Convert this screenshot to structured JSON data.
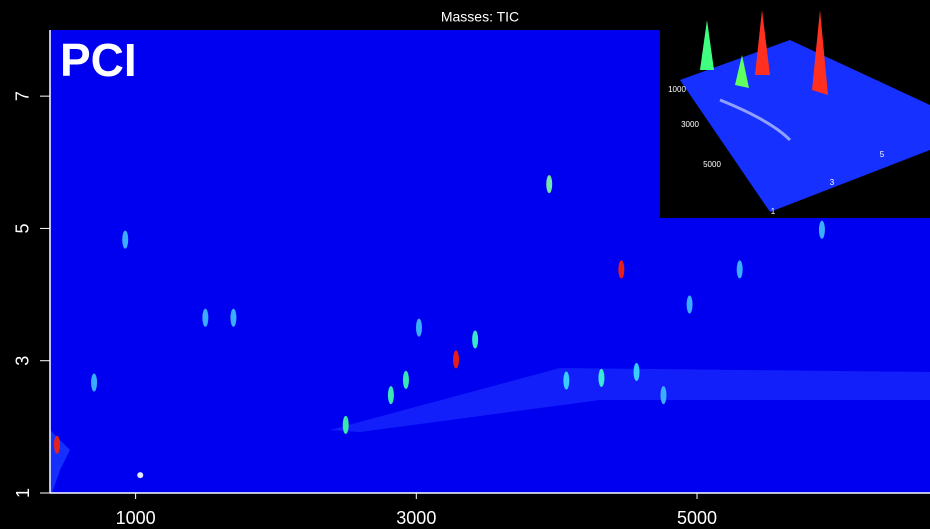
{
  "chart_data": {
    "type": "scatter",
    "title": "Masses:  TIC",
    "annotation": "PCI",
    "x": [
      440,
      926,
      1497,
      1697,
      2497,
      3283,
      3419,
      3019,
      3947,
      4461,
      4947,
      5304,
      5890,
      4319,
      4569,
      4069,
      2819,
      2926,
      704,
      4761,
      1033
    ],
    "values": [
      1.73,
      4.83,
      3.65,
      3.65,
      2.03,
      3.02,
      3.32,
      3.5,
      5.67,
      4.38,
      3.85,
      4.38,
      4.98,
      2.74,
      2.83,
      2.7,
      2.48,
      2.71,
      2.67,
      2.48,
      1.27
    ],
    "colors": [
      "#ff2000",
      "#40c0ff",
      "#40c0ff",
      "#40c0ff",
      "#40ffa0",
      "#ff2000",
      "#40ffc0",
      "#40c0ff",
      "#80ffa0",
      "#ff2000",
      "#40c0ff",
      "#40c0ff",
      "#40c0ff",
      "#40ffd0",
      "#40e0ff",
      "#40e0ff",
      "#40ffb0",
      "#40ffb0",
      "#40c0ff",
      "#40c0ff",
      "#ffffff"
    ],
    "background": "#0000f0",
    "xlim": [
      390,
      6660
    ],
    "ylim": [
      1,
      8.0
    ],
    "xticks": [
      1000,
      3000,
      5000
    ],
    "yticks": [
      1,
      3,
      5,
      7
    ],
    "inset": {
      "x_labels": [
        "1000",
        "3000",
        "5000"
      ],
      "y_labels": [
        "1",
        "3",
        "5"
      ]
    }
  }
}
